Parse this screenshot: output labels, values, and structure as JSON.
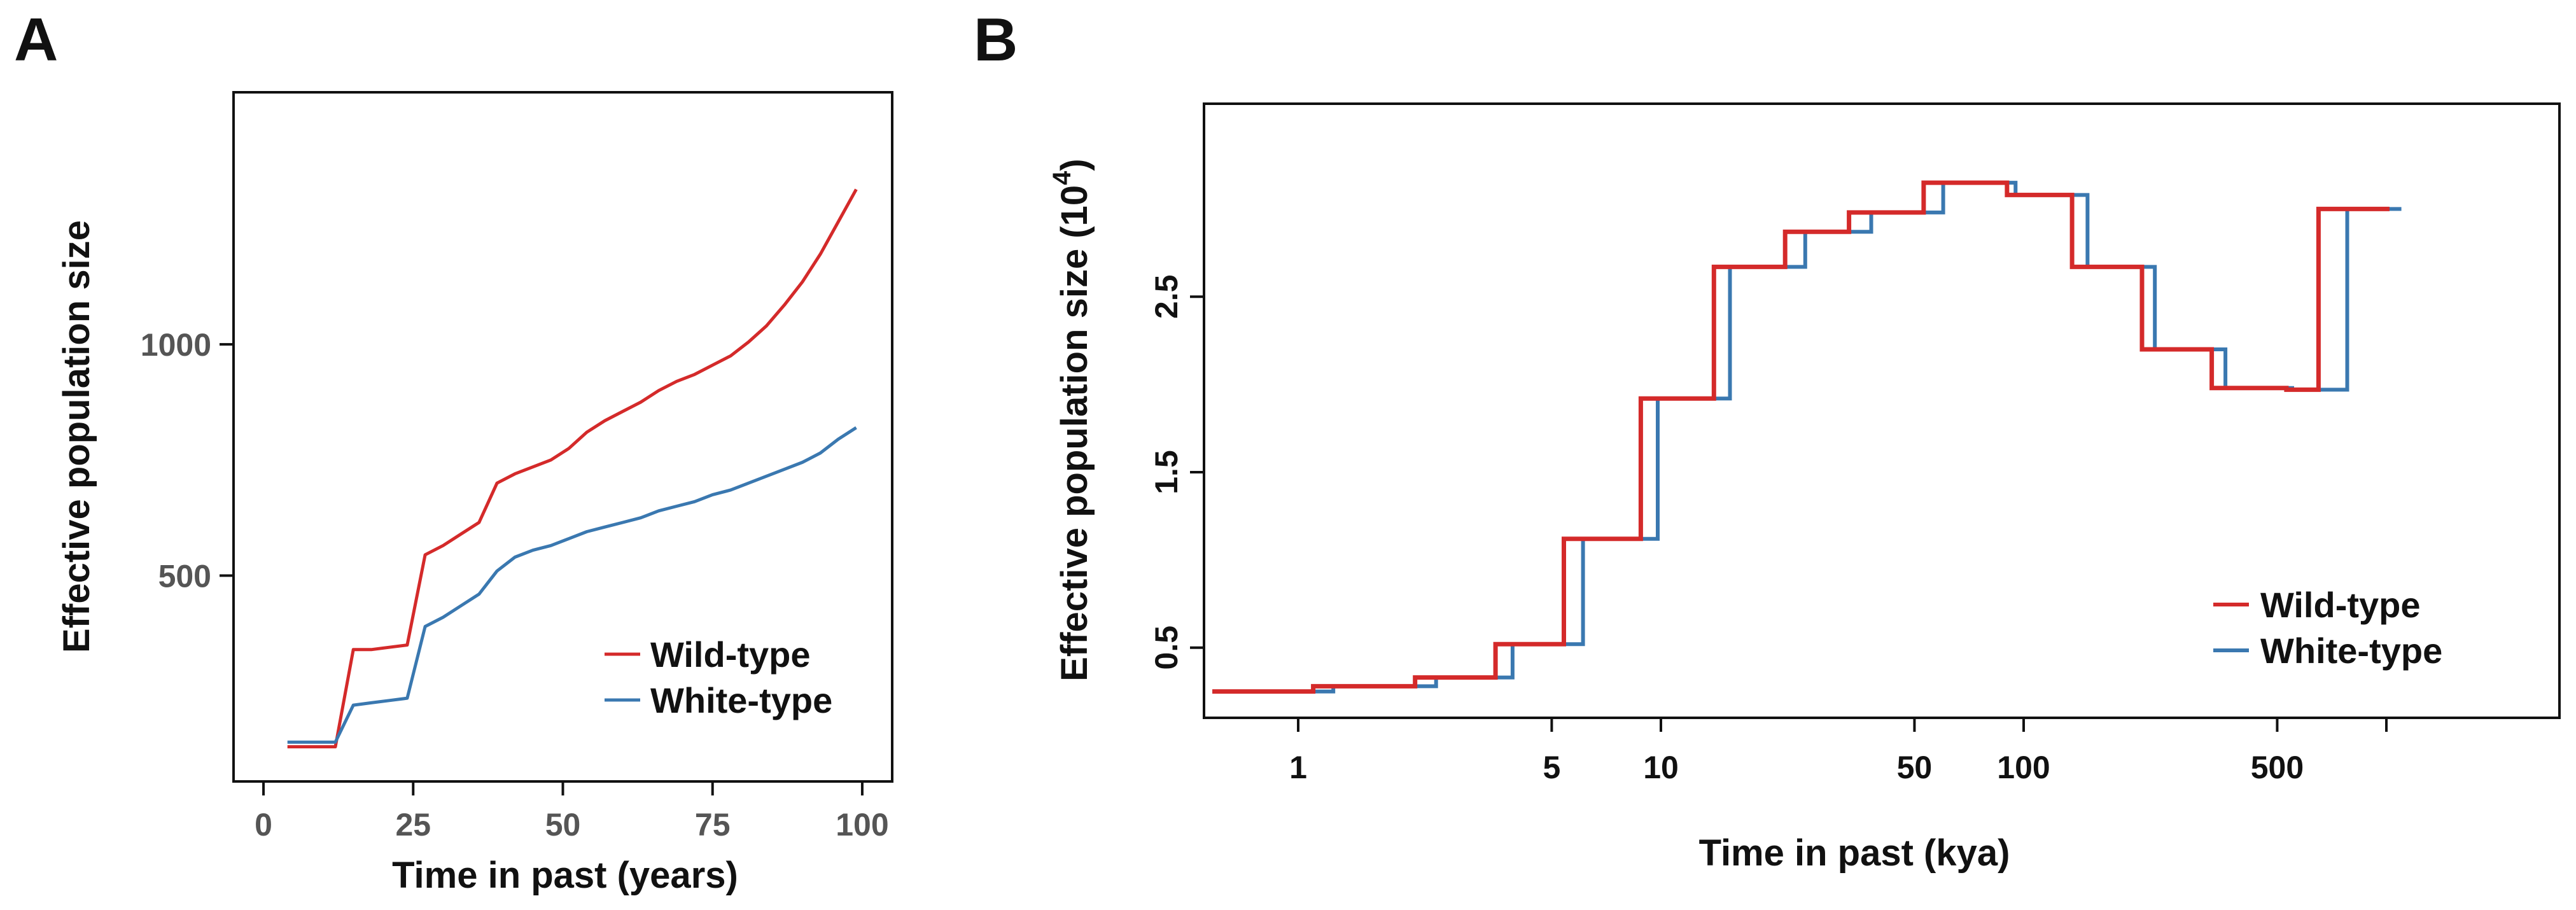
{
  "panels": {
    "a": {
      "letter": "A",
      "chart_data": {
        "type": "line",
        "xlabel": "Time in past (years)",
        "ylabel": "Effective population size",
        "xlim": [
          -5,
          105
        ],
        "ylim": [
          55,
          1545
        ],
        "xticks": [
          "0",
          "25",
          "50",
          "75",
          "100"
        ],
        "xtick_values": [
          0,
          25,
          50,
          75,
          100
        ],
        "yticks": [
          "500",
          "1000"
        ],
        "ytick_values": [
          500,
          1000
        ],
        "legend_position": "bottom-right",
        "series": [
          {
            "name": "Wild-type",
            "color": "#d42a2a",
            "x": [
              4,
              12,
              15,
              18,
              21,
              24,
              27,
              30,
              33,
              36,
              39,
              42,
              45,
              48,
              51,
              54,
              57,
              60,
              63,
              66,
              69,
              72,
              75,
              78,
              81,
              84,
              87,
              90,
              93,
              96,
              99
            ],
            "y": [
              130,
              130,
              340,
              340,
              345,
              350,
              545,
              565,
              590,
              615,
              700,
              720,
              735,
              750,
              775,
              810,
              835,
              855,
              875,
              900,
              920,
              935,
              955,
              975,
              1005,
              1040,
              1085,
              1135,
              1195,
              1265,
              1335
            ]
          },
          {
            "name": "White-type",
            "color": "#3a78b0",
            "x": [
              4,
              12,
              15,
              18,
              21,
              24,
              27,
              30,
              33,
              36,
              39,
              42,
              45,
              48,
              51,
              54,
              57,
              60,
              63,
              66,
              69,
              72,
              75,
              78,
              81,
              84,
              87,
              90,
              93,
              96,
              99
            ],
            "y": [
              140,
              140,
              220,
              225,
              230,
              235,
              390,
              410,
              435,
              460,
              510,
              540,
              555,
              565,
              580,
              595,
              605,
              615,
              625,
              640,
              650,
              660,
              675,
              685,
              700,
              715,
              730,
              745,
              765,
              795,
              820
            ]
          }
        ]
      }
    },
    "b": {
      "letter": "B",
      "chart_data": {
        "type": "line",
        "step": true,
        "xscale": "log",
        "xlabel": "Time in past (kya)",
        "ylabel": "Effective population size (10",
        "ylabel_superscript": "4",
        "ylabel_suffix": ")",
        "xlim": [
          0.55,
          3000
        ],
        "ylim": [
          0.1,
          3.6
        ],
        "xticks": [
          "1",
          "5",
          "10",
          "50",
          "100",
          "500",
          ""
        ],
        "xtick_values": [
          1,
          5,
          10,
          50,
          100,
          500,
          1000
        ],
        "yticks": [
          "0.5",
          "1.5",
          "2.5"
        ],
        "ytick_values": [
          0.5,
          1.5,
          2.5
        ],
        "legend_position": "bottom-right",
        "series": [
          {
            "name": "Wild-type",
            "color": "#d42a2a",
            "x": [
              0.58,
              1.1,
              2.1,
              3.5,
              5.4,
              8.8,
              14,
              22,
              33,
              53,
              90,
              136,
              212,
              330,
              530,
              650,
              1020
            ],
            "y": [
              0.25,
              0.28,
              0.33,
              0.52,
              1.12,
              1.92,
              2.67,
              2.87,
              2.98,
              3.15,
              3.08,
              2.67,
              2.2,
              1.98,
              1.97,
              3.0,
              3.0
            ]
          },
          {
            "name": "White-type",
            "color": "#3a78b0",
            "x": [
              0.58,
              1.25,
              2.4,
              3.9,
              6.1,
              9.8,
              15.5,
              25,
              38,
              60,
              95,
              150,
              230,
              360,
              550,
              780,
              1100
            ],
            "y": [
              0.25,
              0.28,
              0.33,
              0.52,
              1.12,
              1.92,
              2.67,
              2.87,
              2.98,
              3.15,
              3.08,
              2.67,
              2.2,
              1.98,
              1.97,
              3.0,
              3.0
            ]
          }
        ]
      }
    }
  }
}
